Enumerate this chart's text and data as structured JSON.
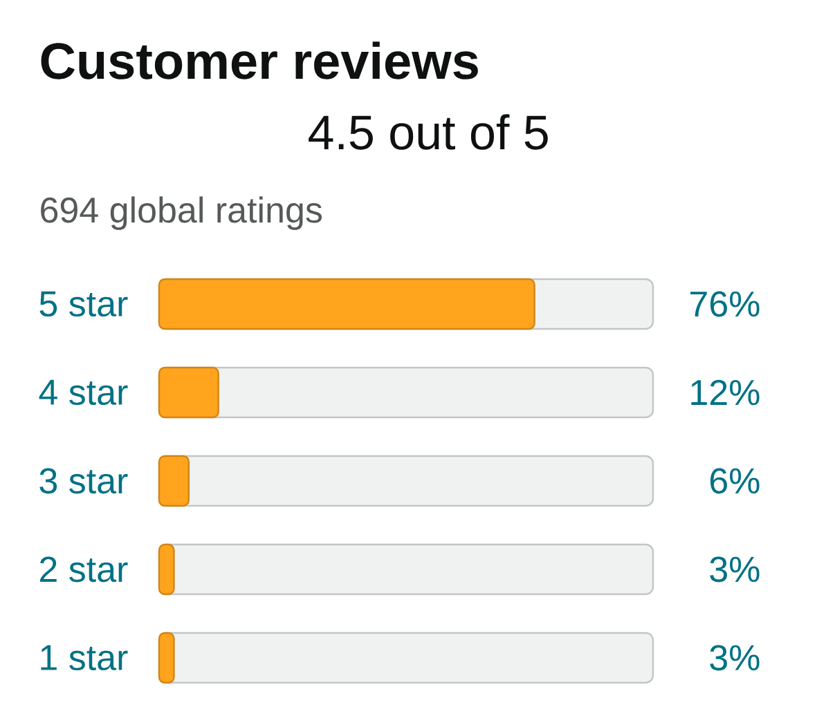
{
  "chart_data": {
    "type": "bar",
    "orientation": "horizontal",
    "title": "Customer reviews",
    "subtitle": "4.5 out of 5",
    "annotations": [
      "694 global ratings"
    ],
    "categories": [
      "5 star",
      "4 star",
      "3 star",
      "2 star",
      "1 star"
    ],
    "values": [
      76,
      12,
      6,
      3,
      3
    ],
    "value_labels": [
      "76%",
      "12%",
      "6%",
      "3%",
      "3%"
    ],
    "color": "#ffa41c",
    "xlim": [
      0,
      100
    ],
    "tick_labels": "y"
  }
}
